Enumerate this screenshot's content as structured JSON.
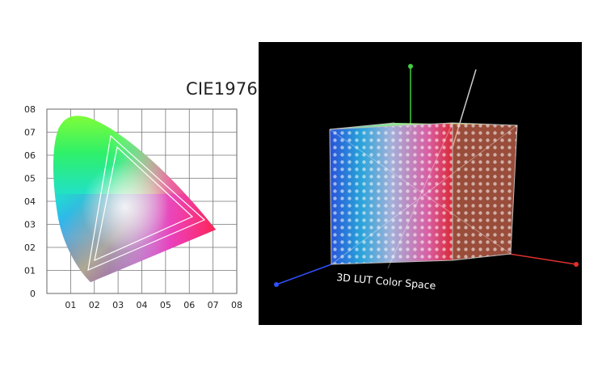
{
  "cie": {
    "title": "CIE1976",
    "y_ticks": [
      "0",
      "01",
      "02",
      "03",
      "04",
      "05",
      "06",
      "07",
      "08"
    ],
    "x_ticks": [
      "01",
      "02",
      "03",
      "04",
      "05",
      "06",
      "07",
      "08"
    ],
    "grid": true
  },
  "lut": {
    "label": "3D LUT Color Space",
    "background": "#000000",
    "axis_colors": {
      "x": "#e03030",
      "y": "#40d040",
      "z": "#3050ff"
    }
  }
}
